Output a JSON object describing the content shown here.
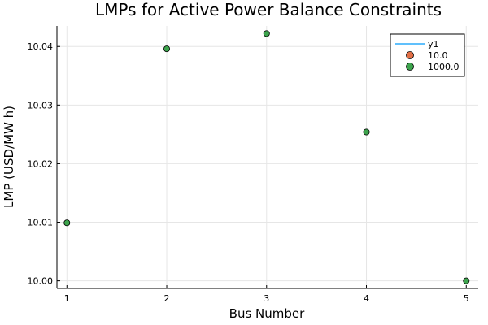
{
  "chart_data": {
    "type": "scatter",
    "title": "LMPs for Active Power Balance Constraints",
    "xlabel": "Bus Number",
    "ylabel": "LMP (USD/MW h)",
    "xlim": [
      0.9,
      5.12
    ],
    "ylim": [
      9.9987,
      10.0435
    ],
    "xticks": [
      1,
      2,
      3,
      4,
      5
    ],
    "xtick_labels": [
      "1",
      "2",
      "3",
      "4",
      "5"
    ],
    "yticks": [
      10.0,
      10.01,
      10.02,
      10.03,
      10.04
    ],
    "ytick_labels": [
      "10.00",
      "10.01",
      "10.02",
      "10.03",
      "10.04"
    ],
    "grid": true,
    "legend_position": "top-right",
    "legend": [
      {
        "name": "y1",
        "kind": "line",
        "color": "#009af9"
      },
      {
        "name": "10.0",
        "kind": "marker",
        "color": "#e26f46"
      },
      {
        "name": "1000.0",
        "kind": "marker",
        "color": "#3da44d"
      }
    ],
    "series": [
      {
        "name": "1000.0",
        "color": "#3da44d",
        "x": [
          1,
          2,
          3,
          4,
          5
        ],
        "y": [
          10.0099,
          10.0396,
          10.0422,
          10.0254,
          10.0
        ]
      }
    ]
  }
}
